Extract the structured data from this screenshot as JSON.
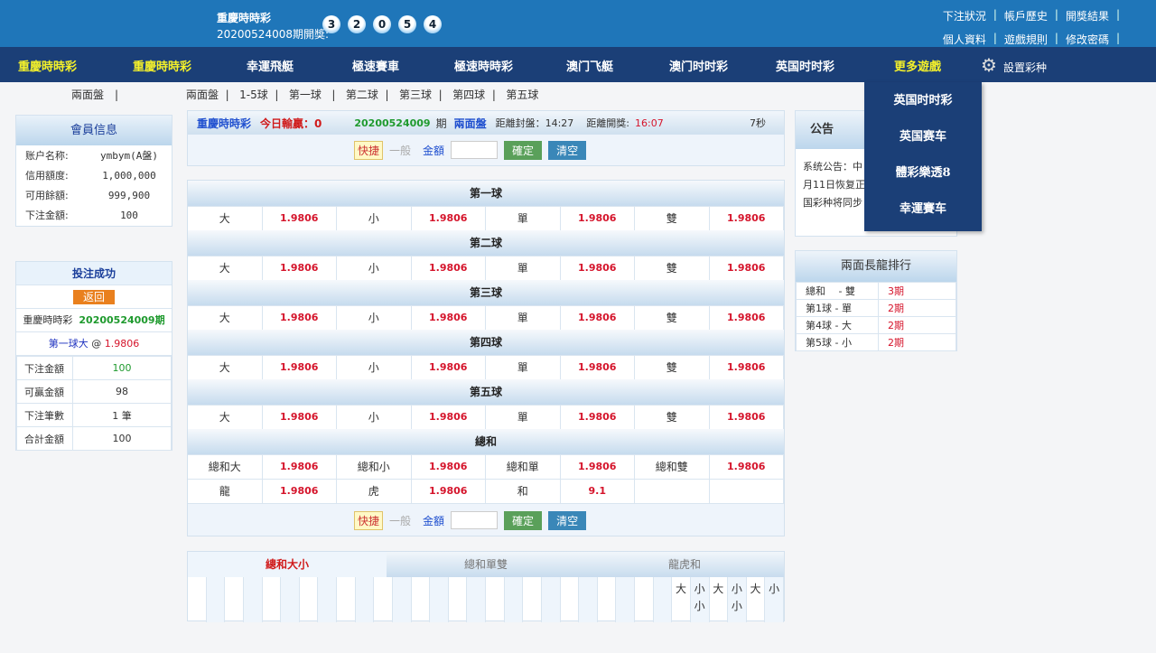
{
  "header": {
    "game": "重慶時時彩",
    "period_label": "20200524008期開獎:",
    "balls": [
      "3",
      "2",
      "0",
      "5",
      "4"
    ],
    "links_row1": [
      "下注狀況",
      "帳戶歷史",
      "開獎結果"
    ],
    "links_row2": [
      "個人資料",
      "遊戲規則",
      "修改密碼"
    ]
  },
  "nav": {
    "items": [
      "重慶時時彩",
      "重慶時時彩",
      "幸運飛艇",
      "極速賽車",
      "極速時時彩",
      "澳门飞艇",
      "澳门时时彩",
      "英国时时彩",
      "更多遊戲"
    ],
    "settings": "設置彩种",
    "more_dropdown": [
      "英国时时彩",
      "英国赛车",
      "體彩樂透8",
      "幸運賽车"
    ]
  },
  "subnav": {
    "left": "兩面盤",
    "items": [
      "兩面盤",
      "1-5球",
      "第一球",
      "第二球",
      "第三球",
      "第四球",
      "第五球"
    ]
  },
  "member": {
    "title": "會員信息",
    "rows": [
      {
        "k": "账户名称:",
        "v": "ymbym(A盤)"
      },
      {
        "k": "信用額度:",
        "v": "1,000,000"
      },
      {
        "k": "可用餘額:",
        "v": "999,900"
      },
      {
        "k": "下注金額:",
        "v": "100"
      }
    ]
  },
  "bet_result": {
    "title": "投注成功",
    "back": "返回",
    "game": "重慶時時彩",
    "period": "20200524009期",
    "item": "第一球大",
    "at": "@",
    "odds": "1.9806",
    "rows": [
      {
        "k": "下注金額",
        "v": "100"
      },
      {
        "k": "可贏金額",
        "v": "98"
      },
      {
        "k": "下注筆數",
        "v": "1 筆"
      },
      {
        "k": "合計金額",
        "v": "100"
      }
    ]
  },
  "info": {
    "game": "重慶時時彩",
    "today": "今日輸贏：0",
    "period": "20200524009",
    "period_suffix": "期",
    "mode": "兩面盤",
    "close": "距離封盤：14:27",
    "open_label": "距離開獎:",
    "open": "16:07",
    "refresh": "7秒"
  },
  "quickbet": {
    "quick": "快捷",
    "normal": "一般",
    "amount": "金額",
    "confirm": "確定",
    "clear": "清空"
  },
  "sections": [
    {
      "title": "第一球",
      "rows": [
        [
          [
            "大",
            "1.9806"
          ],
          [
            "小",
            "1.9806"
          ],
          [
            "單",
            "1.9806"
          ],
          [
            "雙",
            "1.9806"
          ]
        ]
      ]
    },
    {
      "title": "第二球",
      "rows": [
        [
          [
            "大",
            "1.9806"
          ],
          [
            "小",
            "1.9806"
          ],
          [
            "單",
            "1.9806"
          ],
          [
            "雙",
            "1.9806"
          ]
        ]
      ]
    },
    {
      "title": "第三球",
      "rows": [
        [
          [
            "大",
            "1.9806"
          ],
          [
            "小",
            "1.9806"
          ],
          [
            "單",
            "1.9806"
          ],
          [
            "雙",
            "1.9806"
          ]
        ]
      ]
    },
    {
      "title": "第四球",
      "rows": [
        [
          [
            "大",
            "1.9806"
          ],
          [
            "小",
            "1.9806"
          ],
          [
            "單",
            "1.9806"
          ],
          [
            "雙",
            "1.9806"
          ]
        ]
      ]
    },
    {
      "title": "第五球",
      "rows": [
        [
          [
            "大",
            "1.9806"
          ],
          [
            "小",
            "1.9806"
          ],
          [
            "單",
            "1.9806"
          ],
          [
            "雙",
            "1.9806"
          ]
        ]
      ]
    },
    {
      "title": "總和",
      "rows": [
        [
          [
            "總和大",
            "1.9806"
          ],
          [
            "總和小",
            "1.9806"
          ],
          [
            "總和單",
            "1.9806"
          ],
          [
            "總和雙",
            "1.9806"
          ]
        ],
        [
          [
            "龍",
            "1.9806"
          ],
          [
            "虎",
            "1.9806"
          ],
          [
            "和",
            "9.1"
          ],
          [
            "",
            ""
          ]
        ]
      ]
    }
  ],
  "history": {
    "tabs": [
      "總和大小",
      "總和單雙",
      "龍虎和"
    ],
    "active": 0,
    "columns": [
      "大",
      "小\n小",
      "大",
      "小\n小",
      "大",
      "小"
    ]
  },
  "notice": {
    "title": "公告",
    "text": [
      "系统公告：中",
      "月11日恢复正",
      "国彩种将同步"
    ]
  },
  "dragon": {
    "title": "兩面長龍排行",
    "rows": [
      {
        "k": "總和 　- 雙",
        "v": "3期"
      },
      {
        "k": "第1球 - 單",
        "v": "2期"
      },
      {
        "k": "第4球 - 大",
        "v": "2期"
      },
      {
        "k": "第5球 - 小",
        "v": "2期"
      }
    ]
  },
  "colors": {
    "header": "#1f76b9",
    "nav": "#1b3f77",
    "odds": "#d5142b",
    "highlight": "#f6f22a"
  }
}
